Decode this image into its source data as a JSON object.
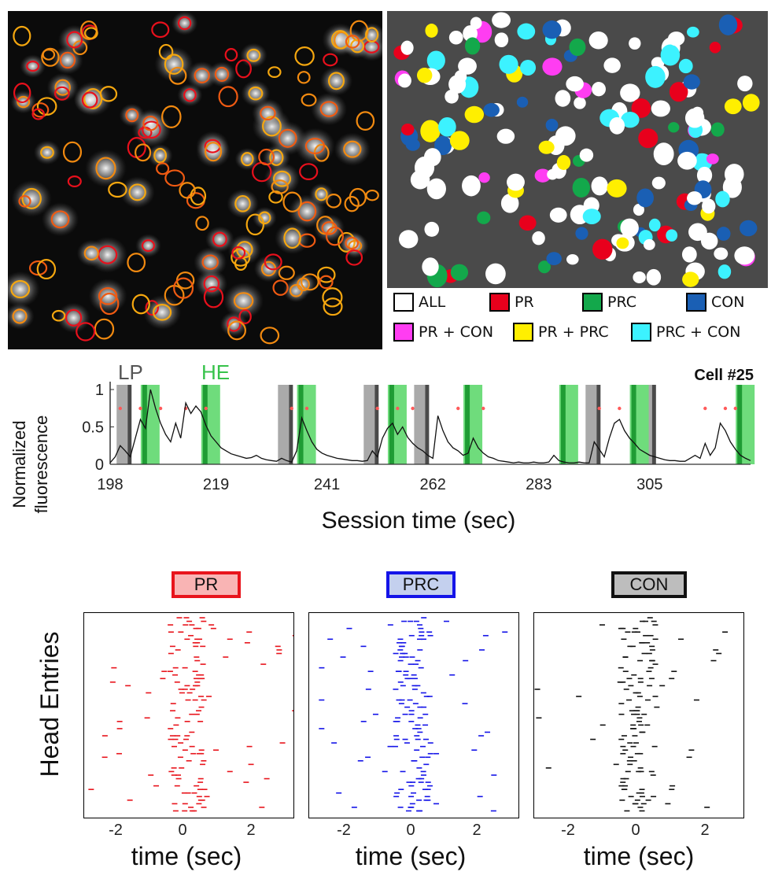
{
  "figure": {
    "legend": {
      "items": [
        {
          "label": "ALL",
          "color": "#ffffff"
        },
        {
          "label": "PR",
          "color": "#e8001c"
        },
        {
          "label": "PRC",
          "color": "#13a84b"
        },
        {
          "label": "CON",
          "color": "#1a5fb4"
        },
        {
          "label": "PR + CON",
          "color": "#ff3df2"
        },
        {
          "label": "PR + PRC",
          "color": "#ffef00"
        },
        {
          "label": "PRC + CON",
          "color": "#3cf2ff"
        }
      ]
    },
    "trace": {
      "lp_label": "LP",
      "he_label": "HE",
      "cell_label": "Cell #25",
      "ylabel_line1": "Normalized",
      "ylabel_line2": "fluorescence",
      "xlabel": "Session time (sec)"
    },
    "rasters": {
      "ylabel": "Head Entries",
      "xlabel": "time (sec)",
      "panels": [
        {
          "label": "PR",
          "color": "#e8141c",
          "fill": "#f9b4b4"
        },
        {
          "label": "PRC",
          "color": "#1414e8",
          "fill": "#c4d0ee"
        },
        {
          "label": "CON",
          "color": "#111111",
          "fill": "#bdbdbd"
        }
      ],
      "ticks": [
        "-2",
        "0",
        "2"
      ]
    }
  },
  "chart_data": [
    {
      "type": "line",
      "title": "Cell #25",
      "xlabel": "Session time (sec)",
      "ylabel": "Normalized fluorescence",
      "xlim": [
        198,
        325
      ],
      "ylim": [
        0,
        1
      ],
      "x_ticks": [
        "198",
        "219",
        "241",
        "262",
        "283",
        "305"
      ],
      "y_ticks": [
        "0",
        "0.5",
        "1"
      ],
      "annotations": [
        "LP",
        "HE"
      ],
      "lp_events": [
        201,
        233,
        250,
        260,
        294,
        305
      ],
      "he_events": [
        205,
        217,
        236,
        254,
        269,
        288,
        302,
        323
      ],
      "x": [
        198,
        199,
        200,
        201,
        202,
        203,
        204,
        205,
        206,
        207,
        208,
        209,
        210,
        211,
        212,
        213,
        214,
        215,
        216,
        217,
        218,
        219,
        220,
        221,
        222,
        223,
        224,
        225,
        226,
        227,
        228,
        229,
        230,
        231,
        232,
        233,
        234,
        235,
        236,
        237,
        238,
        239,
        240,
        241,
        242,
        243,
        244,
        245,
        246,
        247,
        248,
        249,
        250,
        251,
        252,
        253,
        254,
        255,
        256,
        257,
        258,
        259,
        260,
        261,
        262,
        263,
        264,
        265,
        266,
        267,
        268,
        269,
        270,
        271,
        272,
        273,
        274,
        275,
        276,
        277,
        278,
        279,
        280,
        281,
        282,
        283,
        284,
        285,
        286,
        287,
        288,
        289,
        290,
        291,
        292,
        293,
        294,
        295,
        296,
        297,
        298,
        299,
        300,
        301,
        302,
        303,
        304,
        305,
        306,
        307,
        308,
        309,
        310,
        311,
        312,
        313,
        314,
        315,
        316,
        317,
        318,
        319,
        320,
        321,
        322,
        323,
        324,
        325
      ],
      "y": [
        0.02,
        0.1,
        0.25,
        0.18,
        0.1,
        0.35,
        0.6,
        0.48,
        1.0,
        0.75,
        0.55,
        0.4,
        0.3,
        0.55,
        0.35,
        0.82,
        0.68,
        0.78,
        0.7,
        0.52,
        0.38,
        0.3,
        0.22,
        0.18,
        0.14,
        0.12,
        0.1,
        0.08,
        0.09,
        0.12,
        0.08,
        0.06,
        0.05,
        0.04,
        0.08,
        0.05,
        0.03,
        0.18,
        0.62,
        0.45,
        0.3,
        0.2,
        0.15,
        0.12,
        0.1,
        0.08,
        0.07,
        0.06,
        0.05,
        0.05,
        0.04,
        0.05,
        0.18,
        0.1,
        0.35,
        0.48,
        0.55,
        0.4,
        0.5,
        0.36,
        0.28,
        0.22,
        0.18,
        0.12,
        0.08,
        0.65,
        0.45,
        0.3,
        0.22,
        0.18,
        0.12,
        0.15,
        0.35,
        0.22,
        0.15,
        0.1,
        0.08,
        0.05,
        0.04,
        0.03,
        0.02,
        0.03,
        0.02,
        0.02,
        0.03,
        0.02,
        0.02,
        0.03,
        0.12,
        0.05,
        0.03,
        0.02,
        0.02,
        0.03,
        0.02,
        0.02,
        0.3,
        0.2,
        0.1,
        0.35,
        0.55,
        0.6,
        0.45,
        0.35,
        0.28,
        0.2,
        0.16,
        0.12,
        0.1,
        0.08,
        0.06,
        0.05,
        0.05,
        0.04,
        0.04,
        0.08,
        0.12,
        0.08,
        0.28,
        0.12,
        0.22,
        0.55,
        0.45,
        0.3,
        0.2,
        0.12,
        0.08,
        0.05
      ]
    },
    {
      "type": "scatter",
      "title": "PR",
      "xlabel": "time (sec)",
      "ylabel": "Head Entries",
      "xlim": [
        -3,
        3.5
      ],
      "x_ticks": [
        "-2",
        "0",
        "2"
      ]
    },
    {
      "type": "scatter",
      "title": "PRC",
      "xlabel": "time (sec)",
      "xlim": [
        -3,
        3.5
      ],
      "x_ticks": [
        "-2",
        "0",
        "2"
      ]
    },
    {
      "type": "scatter",
      "title": "CON",
      "xlabel": "time (sec)",
      "xlim": [
        -3,
        3.5
      ],
      "x_ticks": [
        "-2",
        "0",
        "2"
      ]
    }
  ]
}
